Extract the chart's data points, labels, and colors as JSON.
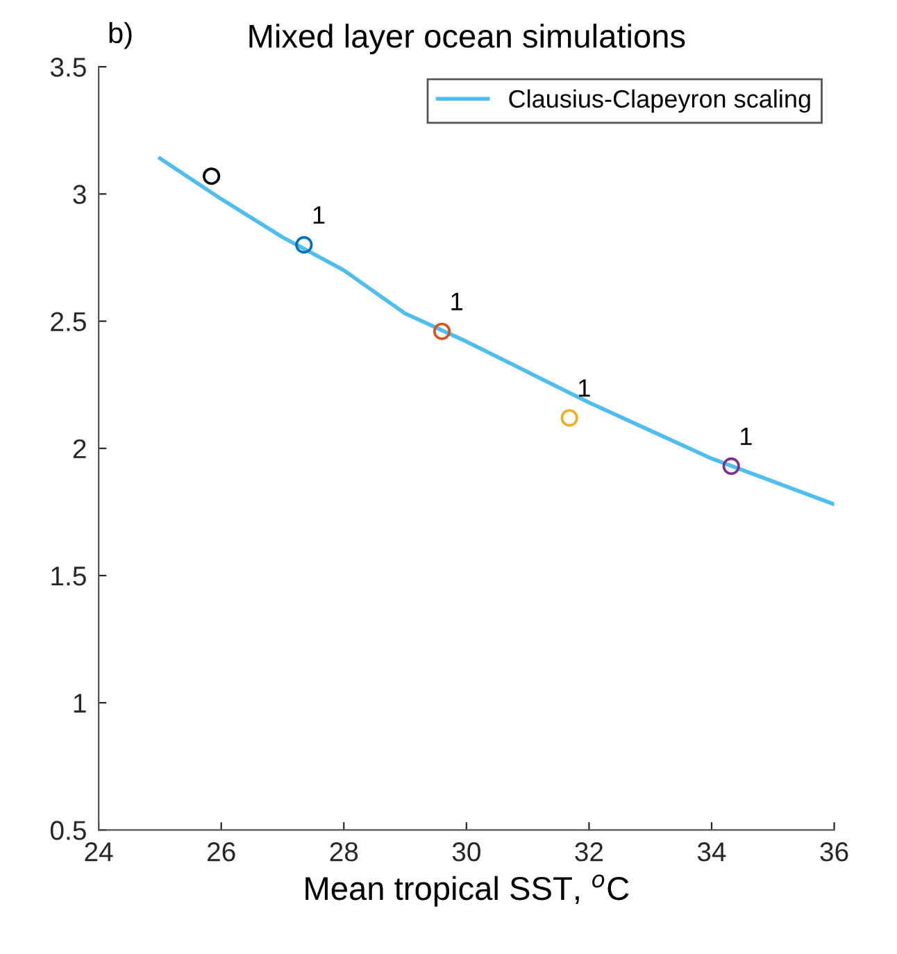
{
  "chart_data": {
    "type": "scatter",
    "title": "Mixed layer ocean simulations",
    "xlabel": "Mean tropical SST, $^{o}$C",
    "annotations": [
      "b)",
      {
        "text": "1",
        "x": 27.35,
        "y": 2.8
      },
      {
        "text": "1",
        "x": 29.6,
        "y": 2.46
      },
      {
        "text": "1",
        "x": 31.68,
        "y": 2.12
      },
      {
        "text": "1",
        "x": 34.32,
        "y": 1.93
      }
    ],
    "series": [
      {
        "x": [
          25.84,
          27.35,
          29.6,
          31.68,
          34.32
        ],
        "values": [
          3.07,
          2.8,
          2.46,
          2.12,
          1.93
        ],
        "colors": [
          "#000000",
          "#0072bd",
          "#d95319",
          "#edb120",
          "#7e2f8e"
        ],
        "marker": "circle"
      },
      {
        "type": "line",
        "name": "Clausius-Clapeyron scaling",
        "color": "#4dbeee",
        "x": [
          25,
          26,
          27,
          28,
          29,
          30,
          31,
          32,
          33,
          34,
          35,
          36
        ],
        "values": [
          3.14,
          2.98,
          2.83,
          2.7,
          2.53,
          2.42,
          2.3,
          2.18,
          2.07,
          1.96,
          1.87,
          1.78
        ],
        "marker": "none",
        "line_style": "solid"
      }
    ],
    "xlim": [
      24,
      36
    ],
    "xticks": [
      24,
      26,
      28,
      30,
      32,
      34,
      36
    ],
    "ylim": [
      0.5,
      3.5
    ],
    "yticks": [
      0.5,
      1,
      1.5,
      2,
      2.5,
      3,
      3.5
    ],
    "grid": false,
    "legend": "top right"
  }
}
